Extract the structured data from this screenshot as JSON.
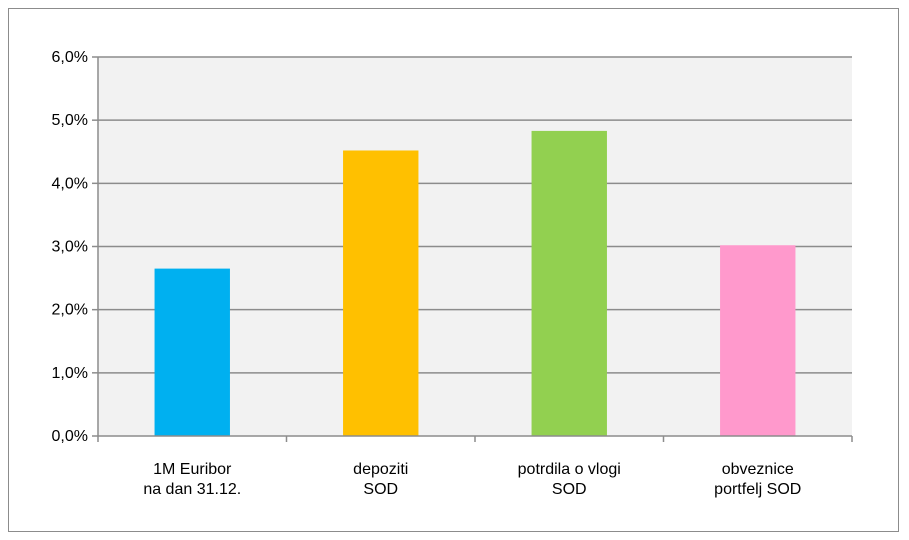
{
  "chart_data": {
    "type": "bar",
    "categories": [
      [
        "1M Euribor",
        "na dan 31.12."
      ],
      [
        "depoziti",
        "SOD"
      ],
      [
        "potrdila o vlogi",
        "SOD"
      ],
      [
        "obveznice",
        "portfelj SOD"
      ]
    ],
    "values": [
      2.65,
      4.52,
      4.83,
      3.02
    ],
    "bar_colors": [
      "#00b0f0",
      "#ffc000",
      "#92d050",
      "#ff99cc"
    ],
    "ylim": [
      0,
      6
    ],
    "yticks": [
      0,
      1,
      2,
      3,
      4,
      5,
      6
    ],
    "ytick_labels": [
      "0,0%",
      "1,0%",
      "2,0%",
      "3,0%",
      "4,0%",
      "5,0%",
      "6,0%"
    ],
    "grid": true,
    "plot_background": "#f2f2f2",
    "grid_color": "#8c8c8c",
    "title": "",
    "xlabel": "",
    "ylabel": ""
  }
}
